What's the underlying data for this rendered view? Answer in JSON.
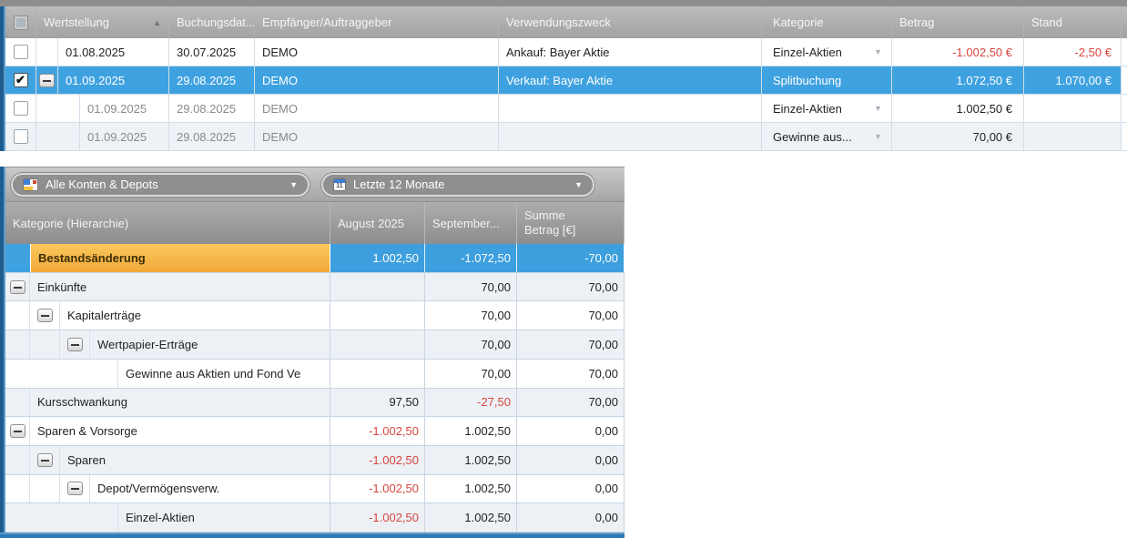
{
  "colors": {
    "selection_blue": "#3fa2e0",
    "highlight_orange": "#f5b742",
    "negative_red": "#d8453e",
    "border_navy": "#1e5c90",
    "header_gray": "#a8a8a8"
  },
  "transactions": {
    "columns": {
      "wertstellung": "Wertstellung",
      "buchungsdatum": "Buchungsdat...",
      "empfaenger": "Empfänger/Auftraggeber",
      "verwendungszweck": "Verwendungszweck",
      "kategorie": "Kategorie",
      "betrag": "Betrag",
      "stand": "Stand"
    },
    "rows": [
      {
        "wertstellung": "01.08.2025",
        "buchungsdatum": "30.07.2025",
        "empfaenger": "DEMO",
        "verwendungszweck": "Ankauf: Bayer Aktie",
        "kategorie": "Einzel-Aktien",
        "betrag": "-1.002,50 €",
        "stand": "-2,50 €"
      },
      {
        "wertstellung": "01.09.2025",
        "buchungsdatum": "29.08.2025",
        "empfaenger": "DEMO",
        "verwendungszweck": "Verkauf: Bayer Aktie",
        "kategorie": "Splitbuchung",
        "betrag": "1.072,50 €",
        "stand": "1.070,00 €"
      },
      {
        "wertstellung": "01.09.2025",
        "buchungsdatum": "29.08.2025",
        "empfaenger": "DEMO",
        "verwendungszweck": "",
        "kategorie": "Einzel-Aktien",
        "betrag": "1.002,50 €",
        "stand": ""
      },
      {
        "wertstellung": "01.09.2025",
        "buchungsdatum": "29.08.2025",
        "empfaenger": "DEMO",
        "verwendungszweck": "",
        "kategorie": "Gewinne aus...",
        "betrag": "70,00 €",
        "stand": ""
      }
    ]
  },
  "report": {
    "filters": {
      "accounts_label": "Alle Konten & Depots",
      "period_label": "Letzte 12 Monate"
    },
    "columns": {
      "kategorie": "Kategorie (Hierarchie)",
      "august": "August 2025",
      "september": "September...",
      "summe_line1": "Summe",
      "summe_line2": "Betrag [€]"
    },
    "rows": [
      {
        "label": "Bestandsänderung",
        "august": "1.002,50",
        "september": "-1.072,50",
        "summe": "-70,00"
      },
      {
        "label": "Einkünfte",
        "august": "",
        "september": "70,00",
        "summe": "70,00"
      },
      {
        "label": "Kapitalerträge",
        "august": "",
        "september": "70,00",
        "summe": "70,00"
      },
      {
        "label": "Wertpapier-Erträge",
        "august": "",
        "september": "70,00",
        "summe": "70,00"
      },
      {
        "label": "Gewinne aus Aktien und Fond Ve",
        "august": "",
        "september": "70,00",
        "summe": "70,00"
      },
      {
        "label": "Kursschwankung",
        "august": "97,50",
        "september": "-27,50",
        "summe": "70,00"
      },
      {
        "label": "Sparen & Vorsorge",
        "august": "-1.002,50",
        "september": "1.002,50",
        "summe": "0,00"
      },
      {
        "label": "Sparen",
        "august": "-1.002,50",
        "september": "1.002,50",
        "summe": "0,00"
      },
      {
        "label": "Depot/Vermögensverw.",
        "august": "-1.002,50",
        "september": "1.002,50",
        "summe": "0,00"
      },
      {
        "label": "Einzel-Aktien",
        "august": "-1.002,50",
        "september": "1.002,50",
        "summe": "0,00"
      }
    ]
  }
}
